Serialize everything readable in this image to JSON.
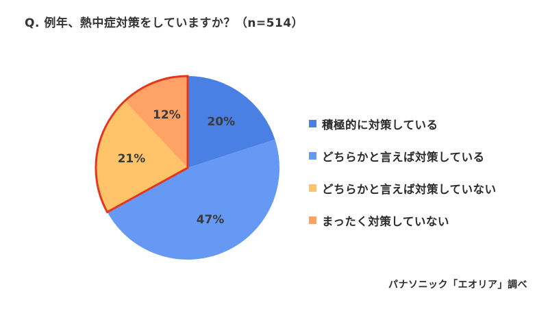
{
  "title": "Q. 例年、熱中症対策をしていますか？（n=514）",
  "source": "パナソニック「エオリア」調べ",
  "chart_data": {
    "type": "pie",
    "title": "Q. 例年、熱中症対策をしていますか？（n=514）",
    "n": 514,
    "categories": [
      "積極的に対策している",
      "どちらかと言えば対策している",
      "どちらかと言えば対策していない",
      "まったく対策していない"
    ],
    "values": [
      20,
      47,
      21,
      12
    ],
    "labels": [
      "20%",
      "47%",
      "21%",
      "12%"
    ],
    "colors": [
      "#4A80E3",
      "#6699F4",
      "#FFC469",
      "#FFA266"
    ],
    "highlight": {
      "slices": [
        2,
        3
      ],
      "outline_color": "#E5361D"
    },
    "start_angle": "12 o'clock",
    "direction": "clockwise",
    "legend_position": "right",
    "source": "パナソニック「エオリア」調べ"
  },
  "legend": [
    {
      "label": "積極的に対策している",
      "color": "#4A80E3"
    },
    {
      "label": "どちらかと言えば対策している",
      "color": "#6699F4"
    },
    {
      "label": "どちらかと言えば対策していない",
      "color": "#FFC469"
    },
    {
      "label": "まったく対策していない",
      "color": "#FFA266"
    }
  ]
}
